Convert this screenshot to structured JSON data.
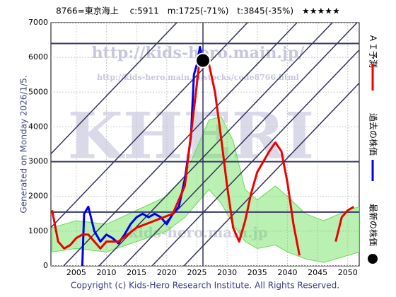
{
  "chart_data": {
    "type": "line",
    "title": "8766=東京海上　 c:5911　m:1725(-71%)　t:3845(-35%)　★★★★★",
    "side_label": "Generated on Monday 2026/1/5.",
    "copyright": "Copyright (c) Kids-Hero Research Institute. All Rights Reserved.",
    "watermarks": [
      "http://kids-hero.main.jp/",
      "http://kids-hero.main.jp/stocks/code8766.html",
      "KHERI",
      "kids-hero.main.jp"
    ],
    "xlim": [
      2000.8,
      2051.9
    ],
    "ylim": [
      0,
      7000
    ],
    "xticks": [
      2005,
      2010,
      2015,
      2020,
      2025,
      2030,
      2035,
      2040,
      2045,
      2050
    ],
    "yticks": [
      0,
      1000,
      2000,
      3000,
      4000,
      5000,
      6000,
      7000
    ],
    "levels": [
      6400,
      3000,
      1550
    ],
    "band": {
      "color": "#66dd55",
      "x": [
        2001,
        2005,
        2010,
        2015,
        2020,
        2023,
        2025,
        2027,
        2029,
        2031,
        2033,
        2035,
        2038,
        2040,
        2043,
        2046,
        2050,
        2051.9
      ],
      "upper": [
        1100,
        1300,
        1200,
        1600,
        2000,
        2600,
        3400,
        4200,
        4300,
        3600,
        2200,
        1900,
        2300,
        2000,
        1500,
        1300,
        1600,
        1700
      ],
      "lower": [
        400,
        500,
        400,
        700,
        1000,
        1400,
        1800,
        2200,
        1800,
        1200,
        700,
        500,
        600,
        400,
        200,
        100,
        300,
        400
      ]
    },
    "series": [
      {
        "name": "過去の株価",
        "color": "#0000ee",
        "x": [
          2006,
          2006.3,
          2007,
          2008,
          2009,
          2010,
          2011,
          2012,
          2013,
          2014,
          2015,
          2016,
          2017,
          2018,
          2019,
          2020,
          2021,
          2022,
          2023,
          2024,
          2024.5,
          2025,
          2025.5,
          2026
        ],
        "values": [
          0,
          1500,
          1700,
          1000,
          700,
          900,
          800,
          650,
          900,
          1200,
          1400,
          1500,
          1400,
          1500,
          1400,
          1200,
          1500,
          1700,
          2500,
          3700,
          5500,
          5800,
          6300,
          5911
        ]
      },
      {
        "name": "ＡＩ予測",
        "color": "#ee0000",
        "x": [
          2001,
          2002,
          2003,
          2004,
          2005,
          2006,
          2007,
          2008,
          2009,
          2010,
          2012,
          2015,
          2018,
          2021,
          2023,
          2024.5,
          2025.5,
          2026,
          2027,
          2028,
          2029,
          2030,
          2031,
          2032,
          2033,
          2034,
          2035,
          2036,
          2037,
          2038,
          2039,
          2040,
          2041,
          2042,
          2043,
          2047,
          2048,
          2049,
          2050,
          2051
        ],
        "values": [
          1600,
          700,
          500,
          600,
          800,
          900,
          900,
          700,
          500,
          700,
          700,
          1100,
          1300,
          1500,
          2300,
          4500,
          6000,
          5900,
          5800,
          5000,
          3700,
          2300,
          1100,
          700,
          1300,
          2100,
          2700,
          3000,
          3300,
          3550,
          3300,
          2400,
          1200,
          300,
          null,
          null,
          700,
          1400,
          1600,
          1700
        ]
      }
    ],
    "latest": {
      "name": "最新の株価",
      "x": 2026,
      "value": 5911,
      "color": "#000000"
    }
  }
}
